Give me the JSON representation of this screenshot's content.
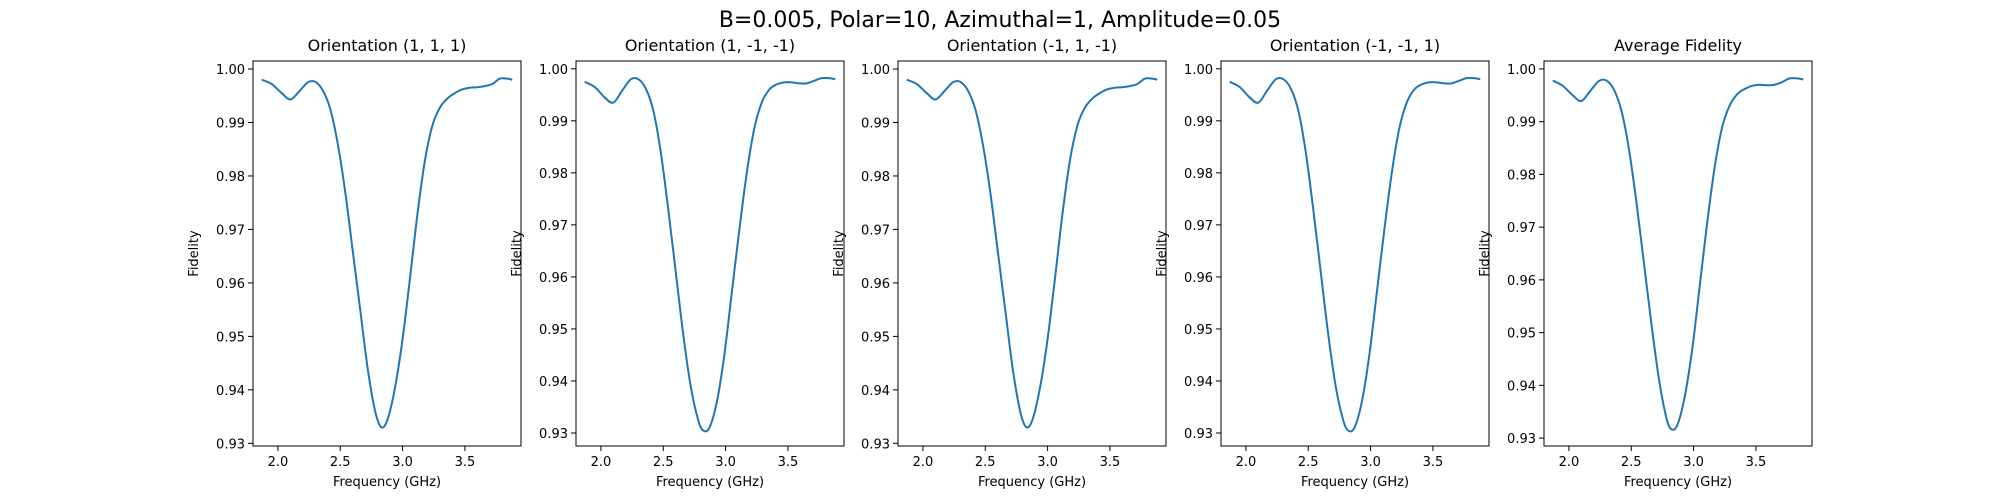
{
  "figure": {
    "suptitle": "B=0.005, Polar=10, Azimuthal=1, Amplitude=0.05",
    "line_color": "#1f77b4"
  },
  "chart_data": [
    {
      "type": "line",
      "title": "Orientation (1, 1, 1)",
      "xlabel": "Frequency (GHz)",
      "ylabel": "Fidelity",
      "xlim": [
        1.8,
        3.95
      ],
      "ylim": [
        0.9295,
        1.0015
      ],
      "xticks": [
        2.0,
        2.5,
        3.0,
        3.5
      ],
      "xtick_labels": [
        "2.0",
        "2.5",
        "3.0",
        "3.5"
      ],
      "yticks": [
        0.93,
        0.94,
        0.95,
        0.96,
        0.97,
        0.98,
        0.99,
        1.0
      ],
      "ytick_labels": [
        "0.93",
        "0.94",
        "0.95",
        "0.96",
        "0.97",
        "0.98",
        "0.99",
        "1.00"
      ],
      "grid": false,
      "series": [
        {
          "x": [
            1.87,
            1.95,
            2.03,
            2.1,
            2.17,
            2.24,
            2.3,
            2.36,
            2.42,
            2.48,
            2.54,
            2.6,
            2.66,
            2.72,
            2.78,
            2.83,
            2.88,
            2.94,
            3.0,
            3.06,
            3.12,
            3.18,
            3.24,
            3.3,
            3.36,
            3.42,
            3.48,
            3.54,
            3.6,
            3.66,
            3.72,
            3.78,
            3.84,
            3.88
          ],
          "y": [
            0.998,
            0.9972,
            0.9955,
            0.9943,
            0.9958,
            0.9975,
            0.9976,
            0.996,
            0.9925,
            0.986,
            0.977,
            0.966,
            0.955,
            0.944,
            0.936,
            0.933,
            0.9345,
            0.9405,
            0.9495,
            0.961,
            0.973,
            0.983,
            0.9895,
            0.9928,
            0.9945,
            0.9955,
            0.9962,
            0.9965,
            0.9966,
            0.9968,
            0.9972,
            0.9982,
            0.9982,
            0.998
          ]
        }
      ]
    },
    {
      "type": "line",
      "title": "Orientation (1, -1, -1)",
      "xlabel": "Frequency (GHz)",
      "ylabel": "Fidelity",
      "xlim": [
        1.8,
        3.95
      ],
      "ylim": [
        0.9275,
        1.0015
      ],
      "xticks": [
        2.0,
        2.5,
        3.0,
        3.5
      ],
      "xtick_labels": [
        "2.0",
        "2.5",
        "3.0",
        "3.5"
      ],
      "yticks": [
        0.93,
        0.94,
        0.95,
        0.96,
        0.97,
        0.98,
        0.99,
        1.0
      ],
      "ytick_labels": [
        "0.93",
        "0.94",
        "0.95",
        "0.96",
        "0.97",
        "0.98",
        "0.99",
        "1.00"
      ],
      "grid": false,
      "series": [
        {
          "x": [
            1.87,
            1.95,
            2.03,
            2.1,
            2.17,
            2.24,
            2.3,
            2.36,
            2.42,
            2.48,
            2.54,
            2.6,
            2.66,
            2.72,
            2.78,
            2.82,
            2.87,
            2.93,
            2.99,
            3.05,
            3.11,
            3.17,
            3.23,
            3.29,
            3.35,
            3.41,
            3.47,
            3.53,
            3.59,
            3.65,
            3.71,
            3.77,
            3.83,
            3.88
          ],
          "y": [
            0.9975,
            0.9965,
            0.9945,
            0.9935,
            0.9958,
            0.998,
            0.998,
            0.9962,
            0.992,
            0.984,
            0.973,
            0.961,
            0.949,
            0.939,
            0.9325,
            0.9305,
            0.931,
            0.936,
            0.945,
            0.957,
            0.969,
            0.98,
            0.9885,
            0.9935,
            0.996,
            0.997,
            0.9974,
            0.9974,
            0.9972,
            0.9972,
            0.9977,
            0.9982,
            0.9982,
            0.998
          ]
        }
      ]
    },
    {
      "type": "line",
      "title": "Orientation (-1, 1, -1)",
      "xlabel": "Frequency (GHz)",
      "ylabel": "Fidelity",
      "xlim": [
        1.8,
        3.95
      ],
      "ylim": [
        0.9295,
        1.0015
      ],
      "xticks": [
        2.0,
        2.5,
        3.0,
        3.5
      ],
      "xtick_labels": [
        "2.0",
        "2.5",
        "3.0",
        "3.5"
      ],
      "yticks": [
        0.93,
        0.94,
        0.95,
        0.96,
        0.97,
        0.98,
        0.99,
        1.0
      ],
      "ytick_labels": [
        "0.93",
        "0.94",
        "0.95",
        "0.96",
        "0.97",
        "0.98",
        "0.99",
        "1.00"
      ],
      "grid": false,
      "series": [
        {
          "x": [
            1.87,
            1.95,
            2.03,
            2.1,
            2.17,
            2.24,
            2.3,
            2.36,
            2.42,
            2.48,
            2.54,
            2.6,
            2.66,
            2.72,
            2.78,
            2.83,
            2.88,
            2.94,
            3.0,
            3.06,
            3.12,
            3.18,
            3.24,
            3.3,
            3.36,
            3.42,
            3.48,
            3.54,
            3.6,
            3.66,
            3.72,
            3.78,
            3.84,
            3.88
          ],
          "y": [
            0.998,
            0.9972,
            0.9955,
            0.9943,
            0.9958,
            0.9975,
            0.9976,
            0.996,
            0.9925,
            0.986,
            0.977,
            0.966,
            0.955,
            0.944,
            0.936,
            0.933,
            0.9345,
            0.9405,
            0.9495,
            0.961,
            0.973,
            0.983,
            0.9895,
            0.9928,
            0.9945,
            0.9955,
            0.9962,
            0.9965,
            0.9966,
            0.9968,
            0.9972,
            0.9982,
            0.9982,
            0.998
          ]
        }
      ]
    },
    {
      "type": "line",
      "title": "Orientation (-1, -1, 1)",
      "xlabel": "Frequency (GHz)",
      "ylabel": "Fidelity",
      "xlim": [
        1.8,
        3.95
      ],
      "ylim": [
        0.9275,
        1.0015
      ],
      "xticks": [
        2.0,
        2.5,
        3.0,
        3.5
      ],
      "xtick_labels": [
        "2.0",
        "2.5",
        "3.0",
        "3.5"
      ],
      "yticks": [
        0.93,
        0.94,
        0.95,
        0.96,
        0.97,
        0.98,
        0.99,
        1.0
      ],
      "ytick_labels": [
        "0.93",
        "0.94",
        "0.95",
        "0.96",
        "0.97",
        "0.98",
        "0.99",
        "1.00"
      ],
      "grid": false,
      "series": [
        {
          "x": [
            1.87,
            1.95,
            2.03,
            2.1,
            2.17,
            2.24,
            2.3,
            2.36,
            2.42,
            2.48,
            2.54,
            2.6,
            2.66,
            2.72,
            2.78,
            2.82,
            2.87,
            2.93,
            2.99,
            3.05,
            3.11,
            3.17,
            3.23,
            3.29,
            3.35,
            3.41,
            3.47,
            3.53,
            3.59,
            3.65,
            3.71,
            3.77,
            3.83,
            3.88
          ],
          "y": [
            0.9975,
            0.9965,
            0.9945,
            0.9935,
            0.9958,
            0.998,
            0.998,
            0.9962,
            0.992,
            0.984,
            0.973,
            0.961,
            0.949,
            0.939,
            0.9325,
            0.9305,
            0.931,
            0.936,
            0.945,
            0.957,
            0.969,
            0.98,
            0.9885,
            0.9935,
            0.996,
            0.997,
            0.9974,
            0.9974,
            0.9972,
            0.9972,
            0.9977,
            0.9982,
            0.9982,
            0.998
          ]
        }
      ]
    },
    {
      "type": "line",
      "title": "Average Fidelity",
      "xlabel": "Frequency (GHz)",
      "ylabel": "Fidelity",
      "xlim": [
        1.8,
        3.95
      ],
      "ylim": [
        0.9285,
        1.0015
      ],
      "xticks": [
        2.0,
        2.5,
        3.0,
        3.5
      ],
      "xtick_labels": [
        "2.0",
        "2.5",
        "3.0",
        "3.5"
      ],
      "yticks": [
        0.93,
        0.94,
        0.95,
        0.96,
        0.97,
        0.98,
        0.99,
        1.0
      ],
      "ytick_labels": [
        "0.93",
        "0.94",
        "0.95",
        "0.96",
        "0.97",
        "0.98",
        "0.99",
        "1.00"
      ],
      "grid": false,
      "series": [
        {
          "x": [
            1.87,
            1.95,
            2.03,
            2.1,
            2.17,
            2.24,
            2.3,
            2.36,
            2.42,
            2.48,
            2.54,
            2.6,
            2.66,
            2.72,
            2.78,
            2.82,
            2.87,
            2.93,
            2.99,
            3.05,
            3.11,
            3.17,
            3.23,
            3.29,
            3.35,
            3.41,
            3.47,
            3.53,
            3.59,
            3.65,
            3.71,
            3.77,
            3.83,
            3.88
          ],
          "y": [
            0.9978,
            0.9968,
            0.995,
            0.9939,
            0.9958,
            0.9977,
            0.9978,
            0.9961,
            0.9922,
            0.985,
            0.975,
            0.9635,
            0.952,
            0.9415,
            0.934,
            0.9317,
            0.9325,
            0.938,
            0.947,
            0.959,
            0.971,
            0.9815,
            0.989,
            0.9931,
            0.9952,
            0.9962,
            0.9968,
            0.997,
            0.9969,
            0.997,
            0.9975,
            0.9982,
            0.9982,
            0.998
          ]
        }
      ]
    }
  ]
}
